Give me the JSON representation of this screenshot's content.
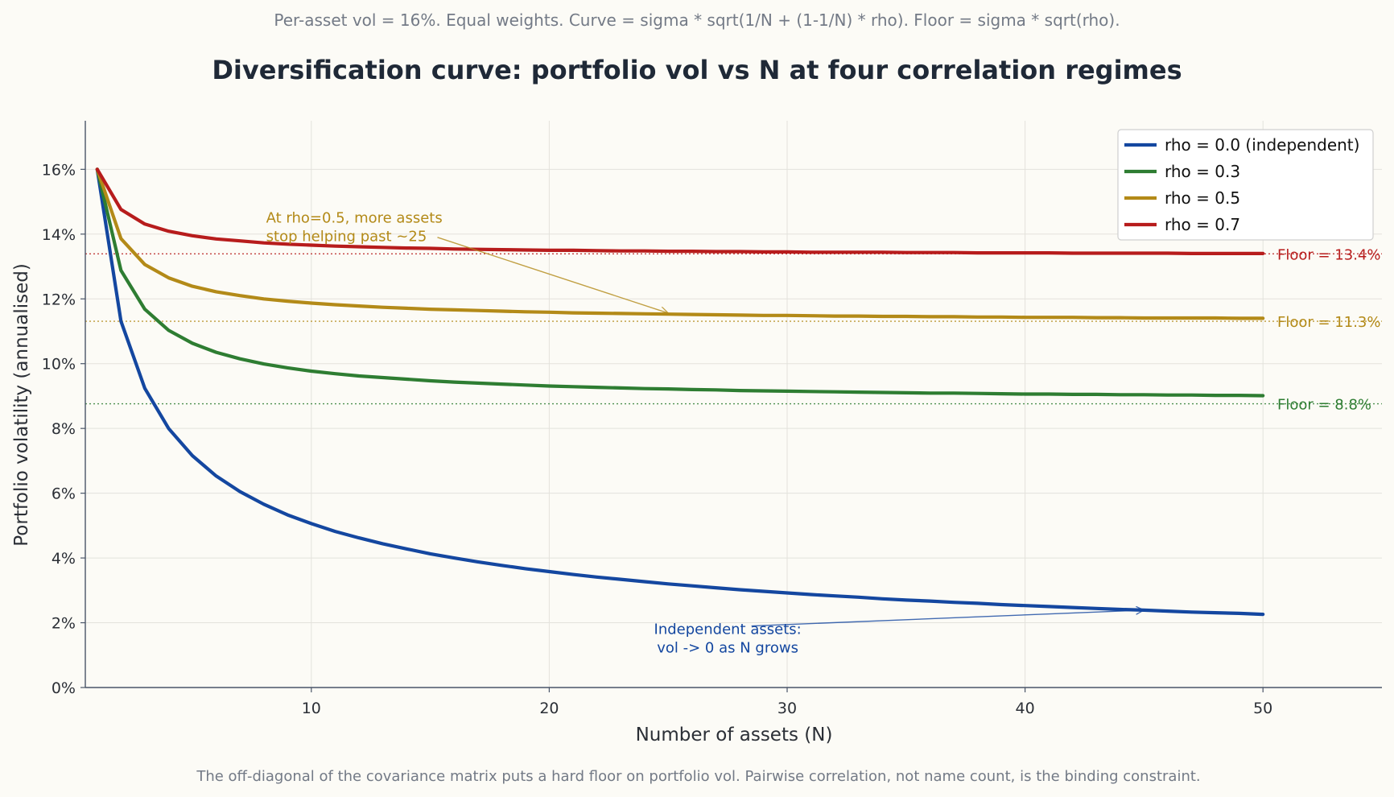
{
  "chart_data": {
    "type": "line",
    "subtitle": "Per-asset vol = 16%. Equal weights. Curve = sigma * sqrt(1/N + (1-1/N) * rho). Floor = sigma * sqrt(rho).",
    "title": "Diversification curve: portfolio vol vs N at four correlation regimes",
    "xlabel": "Number of assets (N)",
    "ylabel": "Portfolio volatility (annualised)",
    "footer": "The off-diagonal of the covariance matrix puts a hard floor on portfolio vol. Pairwise correlation, not name count, is the binding constraint.",
    "xlim": [
      0.5,
      55
    ],
    "ylim": [
      0,
      17.5
    ],
    "x_ticks": [
      10,
      20,
      30,
      40,
      50
    ],
    "x_tick_labels": [
      "10",
      "20",
      "30",
      "40",
      "50"
    ],
    "y_ticks": [
      0,
      2,
      4,
      6,
      8,
      10,
      12,
      14,
      16
    ],
    "y_tick_labels": [
      "0%",
      "2%",
      "4%",
      "6%",
      "8%",
      "10%",
      "12%",
      "14%",
      "16%"
    ],
    "grid": true,
    "legend_position": "top-right",
    "x": [
      1,
      2,
      3,
      4,
      5,
      6,
      7,
      8,
      9,
      10,
      11,
      12,
      13,
      14,
      15,
      16,
      17,
      18,
      19,
      20,
      21,
      22,
      23,
      24,
      25,
      26,
      27,
      28,
      29,
      30,
      31,
      32,
      33,
      34,
      35,
      36,
      37,
      38,
      39,
      40,
      41,
      42,
      43,
      44,
      45,
      46,
      47,
      48,
      49,
      50
    ],
    "series": [
      {
        "name": "rho = 0.0  (independent)",
        "color": "#1447a0",
        "values": [
          16.0,
          11.31,
          9.24,
          8.0,
          7.16,
          6.53,
          6.05,
          5.66,
          5.33,
          5.06,
          4.82,
          4.62,
          4.44,
          4.28,
          4.13,
          4.0,
          3.88,
          3.77,
          3.67,
          3.58,
          3.49,
          3.41,
          3.34,
          3.27,
          3.2,
          3.14,
          3.08,
          3.02,
          2.97,
          2.92,
          2.87,
          2.83,
          2.79,
          2.74,
          2.7,
          2.67,
          2.63,
          2.6,
          2.56,
          2.53,
          2.5,
          2.47,
          2.44,
          2.41,
          2.39,
          2.36,
          2.33,
          2.31,
          2.29,
          2.26
        ]
      },
      {
        "name": "rho = 0.3",
        "color": "#2e7d32",
        "values": [
          16.0,
          12.88,
          11.68,
          11.03,
          10.63,
          10.35,
          10.15,
          9.99,
          9.87,
          9.77,
          9.69,
          9.62,
          9.57,
          9.52,
          9.47,
          9.43,
          9.4,
          9.37,
          9.34,
          9.31,
          9.29,
          9.27,
          9.25,
          9.23,
          9.22,
          9.2,
          9.19,
          9.17,
          9.16,
          9.15,
          9.14,
          9.13,
          9.12,
          9.11,
          9.1,
          9.09,
          9.09,
          9.08,
          9.07,
          9.06,
          9.06,
          9.05,
          9.05,
          9.04,
          9.04,
          9.03,
          9.03,
          9.02,
          9.02,
          9.01
        ]
      },
      {
        "name": "rho = 0.5",
        "color": "#b38a18",
        "values": [
          16.0,
          13.86,
          13.06,
          12.65,
          12.39,
          12.22,
          12.1,
          12.0,
          11.93,
          11.87,
          11.82,
          11.78,
          11.74,
          11.71,
          11.68,
          11.66,
          11.64,
          11.62,
          11.6,
          11.59,
          11.57,
          11.56,
          11.55,
          11.54,
          11.53,
          11.52,
          11.51,
          11.5,
          11.49,
          11.49,
          11.48,
          11.47,
          11.47,
          11.46,
          11.46,
          11.45,
          11.45,
          11.44,
          11.44,
          11.43,
          11.43,
          11.43,
          11.42,
          11.42,
          11.41,
          11.41,
          11.41,
          11.41,
          11.4,
          11.4
        ]
      },
      {
        "name": "rho = 0.7",
        "color": "#b71c1c",
        "values": [
          16.0,
          14.76,
          14.31,
          14.09,
          13.95,
          13.85,
          13.79,
          13.73,
          13.69,
          13.66,
          13.63,
          13.61,
          13.59,
          13.57,
          13.56,
          13.54,
          13.53,
          13.52,
          13.51,
          13.5,
          13.5,
          13.49,
          13.48,
          13.48,
          13.47,
          13.47,
          13.46,
          13.46,
          13.45,
          13.45,
          13.44,
          13.44,
          13.44,
          13.44,
          13.43,
          13.43,
          13.43,
          13.42,
          13.42,
          13.42,
          13.42,
          13.41,
          13.41,
          13.41,
          13.41,
          13.41,
          13.4,
          13.4,
          13.4,
          13.4
        ]
      }
    ],
    "floors": [
      {
        "value": 8.76,
        "label": "Floor = 8.8%",
        "color": "#2e7d32"
      },
      {
        "value": 11.31,
        "label": "Floor = 11.3%",
        "color": "#b38a18"
      },
      {
        "value": 13.39,
        "label": "Floor = 13.4%",
        "color": "#b71c1c"
      }
    ],
    "annotations": [
      {
        "lines": [
          "At rho=0.5, more assets",
          "stop helping past ~25"
        ],
        "text_x": 8.1,
        "text_y": 14.5,
        "arrow_from_x": 15.3,
        "arrow_from_y": 13.9,
        "arrow_to_x": 25,
        "arrow_to_y": 11.56,
        "color": "#b38a18",
        "anchor": "start"
      },
      {
        "lines": [
          "Independent assets:",
          "vol -> 0 as N grows"
        ],
        "text_x": 27.5,
        "text_y": 1.8,
        "arrow_from_x": 28.5,
        "arrow_from_y": 1.9,
        "arrow_to_x": 45,
        "arrow_to_y": 2.39,
        "color": "#1447a0",
        "anchor": "middle"
      }
    ]
  }
}
